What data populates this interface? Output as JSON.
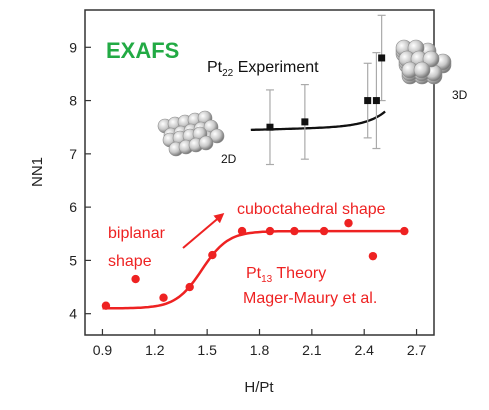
{
  "chart_data": {
    "type": "scatter",
    "xlabel": "H/Pt",
    "ylabel": "NN1",
    "xlim": [
      0.8,
      2.8
    ],
    "ylim": [
      3.6,
      9.7
    ],
    "x_ticks": [
      "0.9",
      "1.2",
      "1.5",
      "1.8",
      "2.1",
      "2.4",
      "2.7"
    ],
    "y_ticks": [
      "4",
      "5",
      "6",
      "7",
      "8",
      "9"
    ],
    "title_badge": "EXAFS",
    "title_badge_color": "#22aa44",
    "series": [
      {
        "label_main": "Pt",
        "label_sub": "22",
        "label_rest": " Experiment",
        "marker": "square",
        "color": "#111111",
        "points": [
          {
            "x": 1.86,
            "y": 7.5,
            "err": 0.7
          },
          {
            "x": 2.06,
            "y": 7.6,
            "err": 0.7
          },
          {
            "x": 2.42,
            "y": 8.0,
            "err": 0.7
          },
          {
            "x": 2.47,
            "y": 8.0,
            "err": 0.9
          },
          {
            "x": 2.5,
            "y": 8.8,
            "err": 0.8
          }
        ]
      },
      {
        "label_main": "Pt",
        "label_sub": "13",
        "label_rest": " Theory",
        "label_line2": "Mager-Maury et al.",
        "marker": "circle",
        "color": "#ee2222",
        "points": [
          {
            "x": 0.92,
            "y": 4.15
          },
          {
            "x": 1.09,
            "y": 4.65
          },
          {
            "x": 1.25,
            "y": 4.3
          },
          {
            "x": 1.4,
            "y": 4.5
          },
          {
            "x": 1.53,
            "y": 5.1
          },
          {
            "x": 1.7,
            "y": 5.55
          },
          {
            "x": 1.86,
            "y": 5.55
          },
          {
            "x": 2.0,
            "y": 5.55
          },
          {
            "x": 2.17,
            "y": 5.55
          },
          {
            "x": 2.31,
            "y": 5.7
          },
          {
            "x": 2.45,
            "y": 5.08
          },
          {
            "x": 2.63,
            "y": 5.55
          }
        ]
      }
    ],
    "annotations": {
      "biplanar_line1": "biplanar",
      "biplanar_line2": "shape",
      "cuboctahedral": "cuboctahedral shape",
      "label_2d": "2D",
      "label_3d": "3D"
    }
  }
}
